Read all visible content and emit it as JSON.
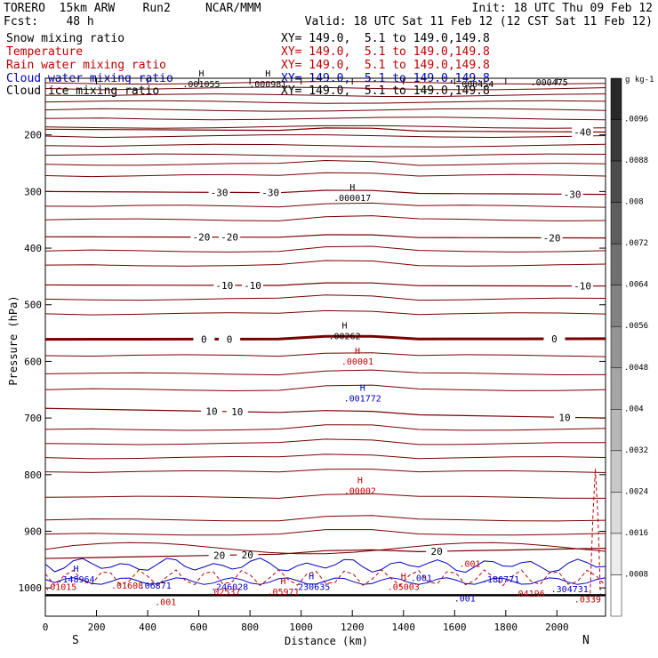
{
  "header": {
    "model": "TORERO  15km ARW    Run2     NCAR/MMM",
    "init": "Init: 18 UTC Thu 09 Feb 12",
    "fcst": "Fcst:    48 h",
    "valid": "Valid: 18 UTC Sat 11 Feb 12 (12 CST Sat 11 Feb 12)"
  },
  "fields": [
    {
      "name": "Snow mixing ratio",
      "color": "#000000",
      "xy": "XY= 149.0,  5.1 to 149.0,149.8"
    },
    {
      "name": "Temperature",
      "color": "#c00000",
      "xy": "XY= 149.0,  5.1 to 149.0,149.8"
    },
    {
      "name": "Rain water mixing ratio",
      "color": "#c00000",
      "xy": "XY= 149.0,  5.1 to 149.0,149.8"
    },
    {
      "name": "Cloud water mixing ratio",
      "color": "#0000c0",
      "xy": "XY= 149.0,  5.1 to 149.0,149.8"
    },
    {
      "name": "Cloud ice mixing ratio",
      "color": "#000000",
      "xy": "XY= 149.0,  5.1 to 149.0,149.8"
    }
  ],
  "chart_data": {
    "type": "contour cross-section",
    "xlabel": "Distance (km)",
    "ylabel": "Pressure (hPa)",
    "xlim": [
      0,
      2190
    ],
    "ylim": [
      1050,
      100
    ],
    "x_ticks": [
      0,
      200,
      400,
      600,
      800,
      1000,
      1200,
      1400,
      1600,
      1800,
      2000
    ],
    "y_ticks": [
      200,
      300,
      400,
      500,
      600,
      700,
      800,
      900,
      1000
    ],
    "x_end_labels": {
      "left": "S",
      "right": "N"
    },
    "colorbar": {
      "unit": "g kg-1",
      "ticks": [
        ".0096",
        ".0088",
        ".008",
        ".0072",
        ".0064",
        ".0056",
        ".0048",
        ".004",
        ".0032",
        ".0024",
        ".0016",
        ".0008"
      ],
      "range": [
        0,
        0.0104
      ]
    },
    "temperature_contours": [
      {
        "label": "-40",
        "label_x": [
          2100
        ],
        "pressure_left": 190,
        "pressure_right": 195
      },
      {
        "label": "-30",
        "label_x": [
          680,
          880,
          2060
        ],
        "pressure_left": 300,
        "pressure_right": 305
      },
      {
        "label": "-20",
        "label_x": [
          610,
          720,
          1980
        ],
        "pressure_left": 380,
        "pressure_right": 382
      },
      {
        "label": "-10",
        "label_x": [
          700,
          810,
          2100
        ],
        "pressure_left": 465,
        "pressure_right": 467
      },
      {
        "label": "0",
        "label_x": [
          620,
          720,
          1990
        ],
        "pressure_left": 561,
        "pressure_right": 560
      },
      {
        "label": "10",
        "label_x": [
          650,
          750,
          2030
        ],
        "pressure_left": 683,
        "pressure_right": 700
      },
      {
        "label": "20",
        "label_x": [
          680,
          790,
          1530
        ],
        "pressure_left": 948,
        "pressure_right": 930
      }
    ],
    "maxima": [
      {
        "mark": "H",
        "value": ".001055",
        "x": 610,
        "p": 100,
        "color": "#000000"
      },
      {
        "mark": "H",
        "value": ".000981",
        "x": 870,
        "p": 100,
        "color": "#000000"
      },
      {
        "mark": "",
        "value": ".000454",
        "x": 1680,
        "p": 100,
        "color": "#000000"
      },
      {
        "mark": "",
        "value": ".000475",
        "x": 1970,
        "p": 97,
        "color": "#000000"
      },
      {
        "mark": "H",
        "value": ".000017",
        "x": 1200,
        "p": 301,
        "color": "#000000"
      },
      {
        "mark": "H",
        "value": ".00262",
        "x": 1170,
        "p": 545,
        "color": "#000000"
      },
      {
        "mark": "H",
        "value": ".00001",
        "x": 1220,
        "p": 590,
        "color": "#c00000"
      },
      {
        "mark": "H",
        "value": ".001772",
        "x": 1240,
        "p": 655,
        "color": "#0000c0"
      },
      {
        "mark": "H",
        "value": ".00002",
        "x": 1230,
        "p": 818,
        "color": "#c00000"
      },
      {
        "mark": "H",
        "value": ".148964",
        "x": 120,
        "p": 975,
        "color": "#0000c0"
      },
      {
        "mark": "",
        "value": ".01015",
        "x": 60,
        "p": 988,
        "color": "#c00000"
      },
      {
        "mark": "",
        "value": ".01608",
        "x": 320,
        "p": 986,
        "color": "#c00000"
      },
      {
        "mark": "",
        "value": ".06871",
        "x": 430,
        "p": 986,
        "color": "#0000c0"
      },
      {
        "mark": "",
        "value": ".246028",
        "x": 720,
        "p": 988,
        "color": "#0000c0"
      },
      {
        "mark": "",
        "value": ".02537",
        "x": 700,
        "p": 997,
        "color": "#c00000"
      },
      {
        "mark": "H",
        "value": ".05971",
        "x": 930,
        "p": 997,
        "color": "#c00000"
      },
      {
        "mark": "H",
        "value": ".230635",
        "x": 1040,
        "p": 988,
        "color": "#0000c0"
      },
      {
        "mark": "H",
        "value": ".05003",
        "x": 1400,
        "p": 988,
        "color": "#c00000"
      },
      {
        "mark": "",
        "value": ".001",
        "x": 1470,
        "p": 972,
        "color": "#0000c0"
      },
      {
        "mark": "",
        "value": ".001",
        "x": 1660,
        "p": 947,
        "color": "#c00000"
      },
      {
        "mark": "",
        "value": ".186771",
        "x": 1780,
        "p": 975,
        "color": "#0000c0"
      },
      {
        "mark": "",
        "value": ".001",
        "x": 1640,
        "p": 1008,
        "color": "#0000c0"
      },
      {
        "mark": "",
        "value": ".04196",
        "x": 1890,
        "p": 1000,
        "color": "#c00000"
      },
      {
        "mark": "",
        "value": ".304731",
        "x": 2050,
        "p": 992,
        "color": "#0000c0"
      },
      {
        "mark": "",
        "value": ".0339",
        "x": 2120,
        "p": 1010,
        "color": "#c00000"
      },
      {
        "mark": "",
        "value": ".001",
        "x": 470,
        "p": 1015,
        "color": "#c00000"
      }
    ],
    "surface_pressure": 1013
  }
}
